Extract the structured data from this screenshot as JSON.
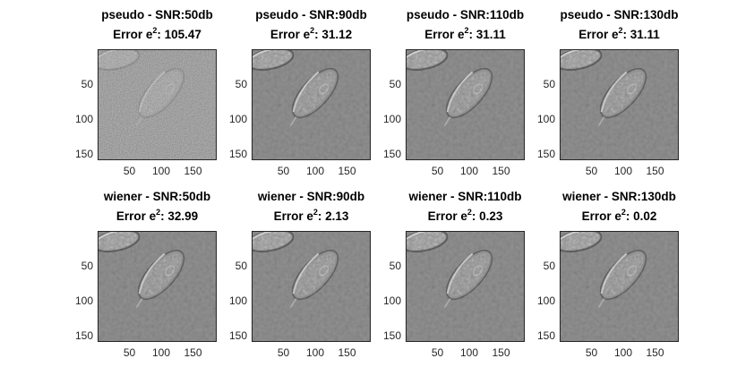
{
  "chart_data": {
    "type": "image-grid",
    "rows": 2,
    "cols": 4,
    "xticks": [
      "50",
      "100",
      "150"
    ],
    "yticks": [
      "50",
      "100",
      "150"
    ],
    "panels": [
      {
        "title": "pseudo - SNR:50db",
        "error_prefix": "Error e",
        "error_sup": "2",
        "error_value": ": 105.47"
      },
      {
        "title": "pseudo - SNR:90db",
        "error_prefix": "Error e",
        "error_sup": "2",
        "error_value": ": 31.12"
      },
      {
        "title": "pseudo - SNR:110db",
        "error_prefix": "Error e",
        "error_sup": "2",
        "error_value": ": 31.11"
      },
      {
        "title": "pseudo - SNR:130db",
        "error_prefix": "Error e",
        "error_sup": "2",
        "error_value": ": 31.11"
      },
      {
        "title": "wiener - SNR:50db",
        "error_prefix": "Error e",
        "error_sup": "2",
        "error_value": ": 32.99"
      },
      {
        "title": "wiener - SNR:90db",
        "error_prefix": "Error e",
        "error_sup": "2",
        "error_value": ": 2.13"
      },
      {
        "title": "wiener - SNR:110db",
        "error_prefix": "Error e",
        "error_sup": "2",
        "error_value": ": 0.23"
      },
      {
        "title": "wiener - SNR:130db",
        "error_prefix": "Error e",
        "error_sup": "2",
        "error_value": ": 0.02"
      }
    ]
  }
}
